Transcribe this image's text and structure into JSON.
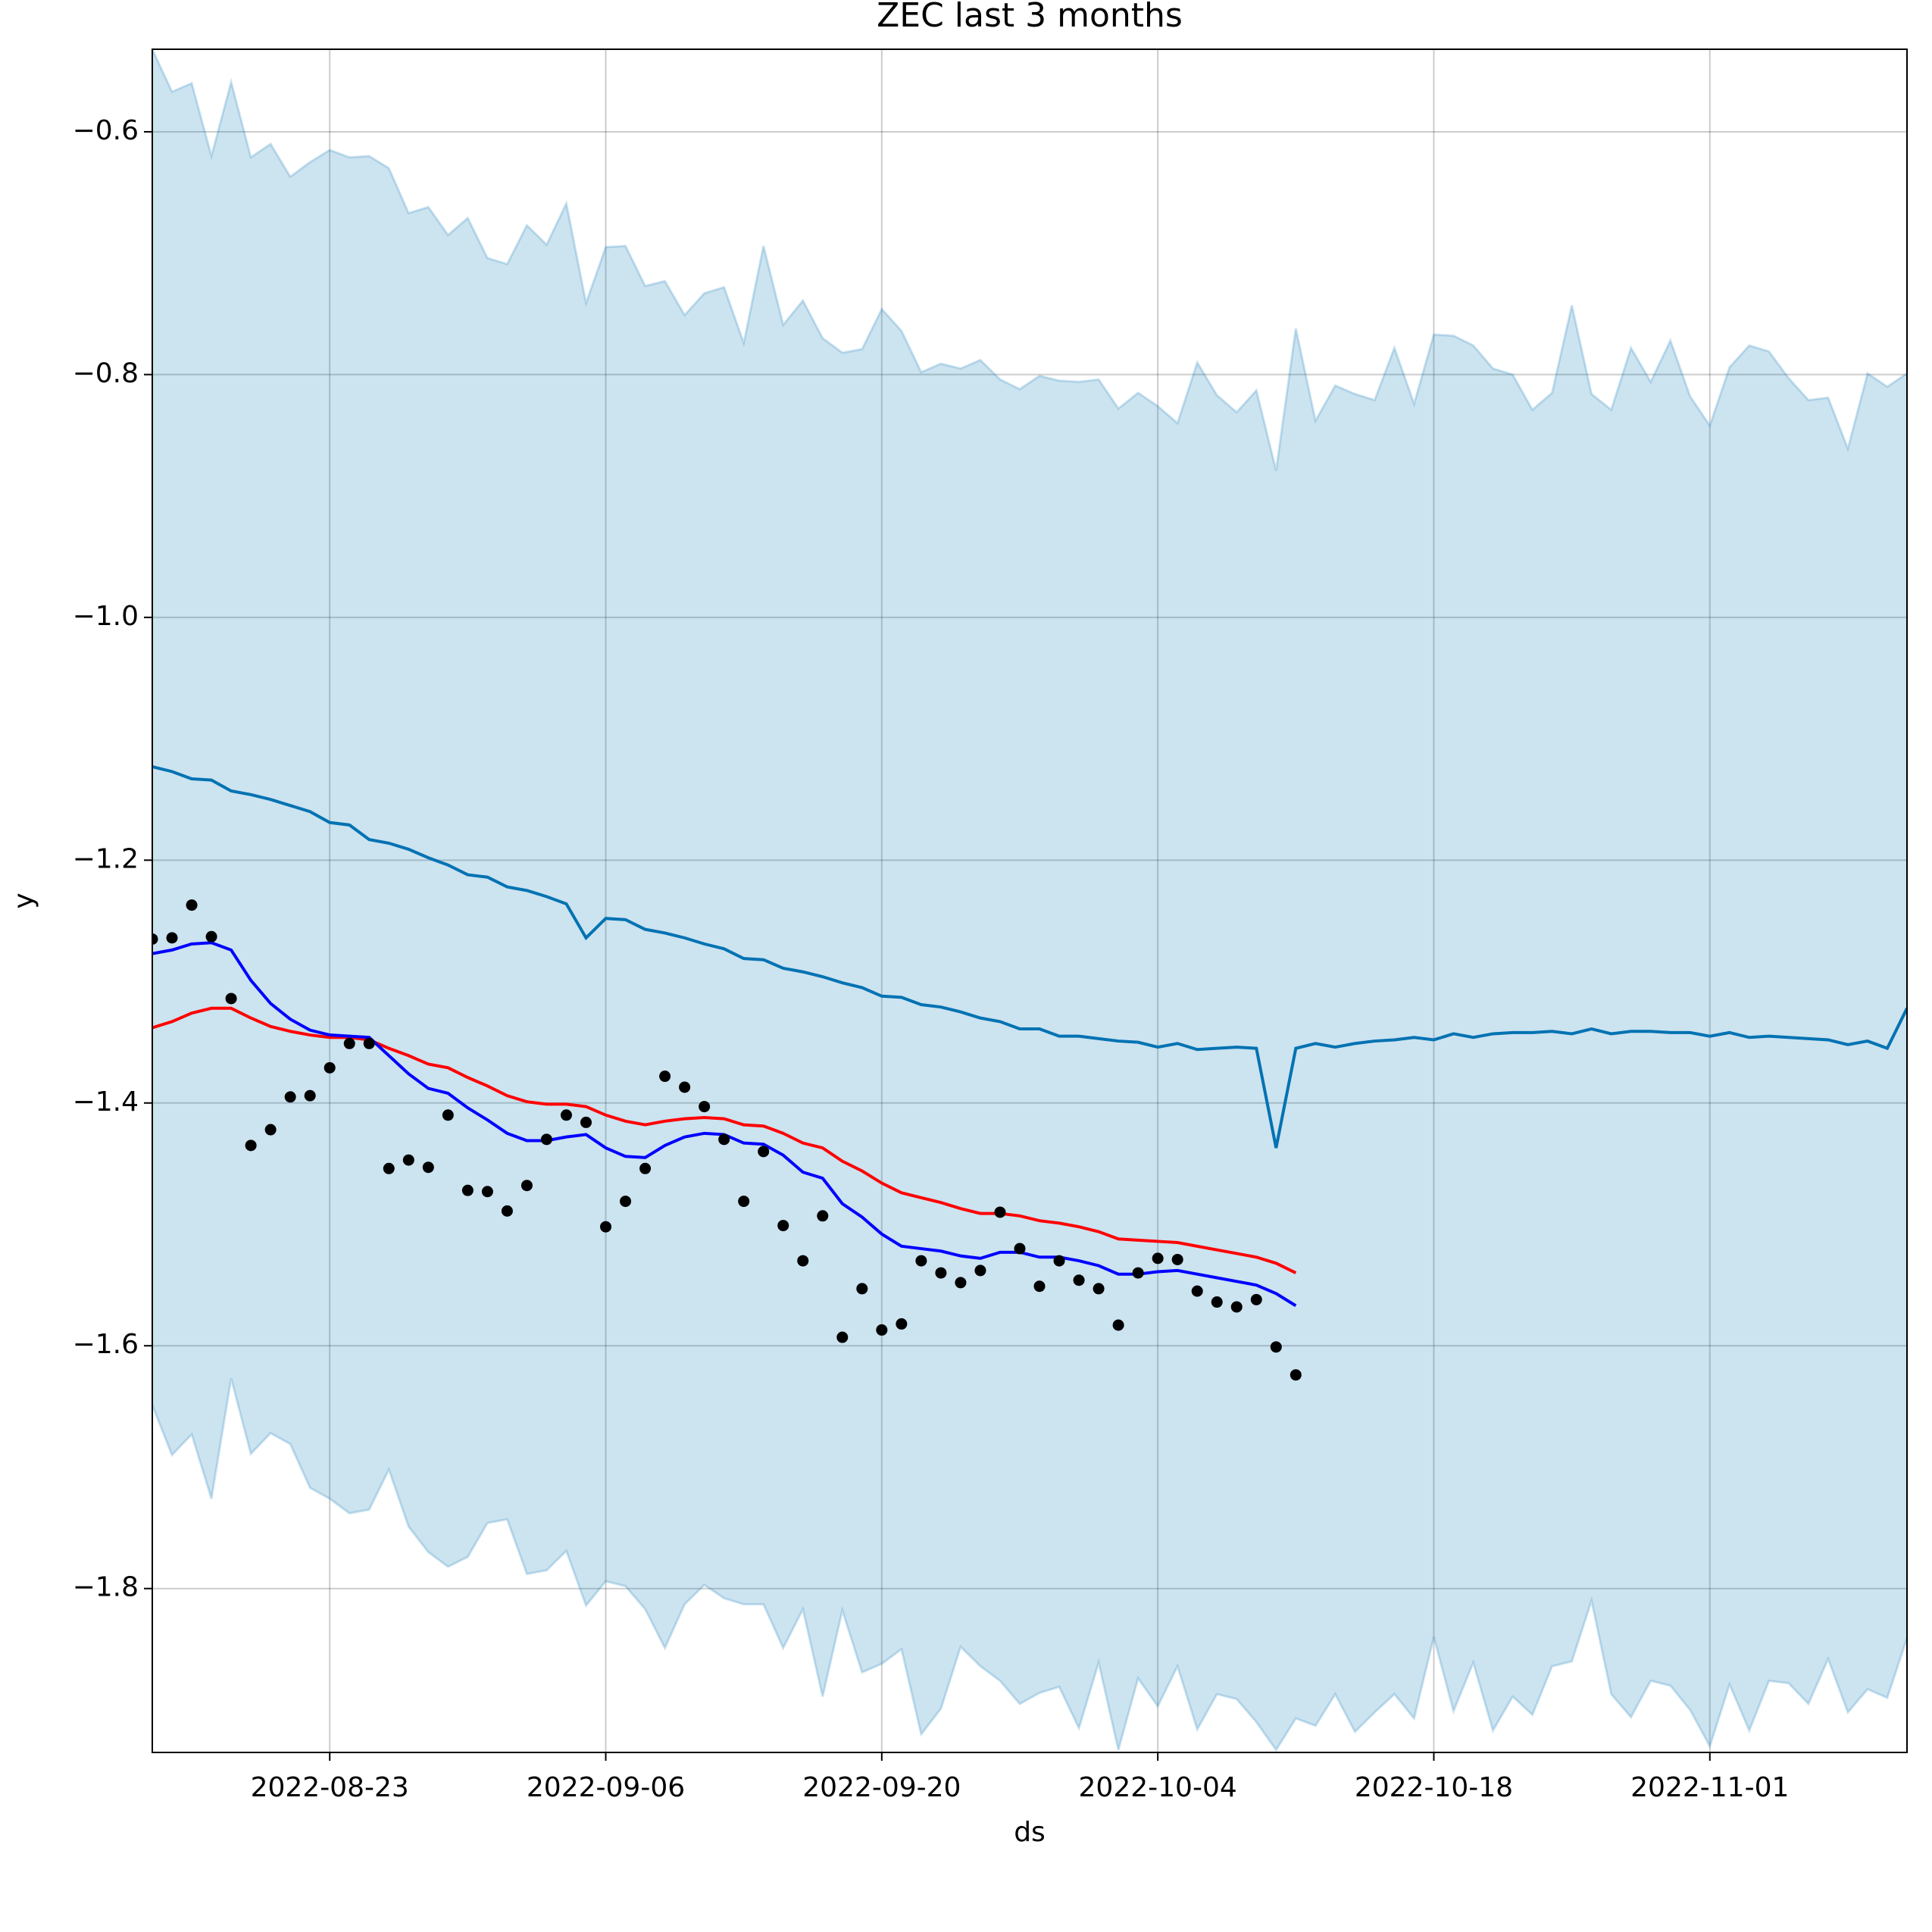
{
  "chart_data": {
    "type": "line",
    "title": "ZEC last 3 months",
    "xlabel": "ds",
    "ylabel": "y",
    "x": [
      "2022-08-14",
      "2022-08-15",
      "2022-08-16",
      "2022-08-17",
      "2022-08-18",
      "2022-08-19",
      "2022-08-20",
      "2022-08-21",
      "2022-08-22",
      "2022-08-23",
      "2022-08-24",
      "2022-08-25",
      "2022-08-26",
      "2022-08-27",
      "2022-08-28",
      "2022-08-29",
      "2022-08-30",
      "2022-08-31",
      "2022-09-01",
      "2022-09-02",
      "2022-09-03",
      "2022-09-04",
      "2022-09-05",
      "2022-09-06",
      "2022-09-07",
      "2022-09-08",
      "2022-09-09",
      "2022-09-10",
      "2022-09-11",
      "2022-09-12",
      "2022-09-13",
      "2022-09-14",
      "2022-09-15",
      "2022-09-16",
      "2022-09-17",
      "2022-09-18",
      "2022-09-19",
      "2022-09-20",
      "2022-09-21",
      "2022-09-22",
      "2022-09-23",
      "2022-09-24",
      "2022-09-25",
      "2022-09-26",
      "2022-09-27",
      "2022-09-28",
      "2022-09-29",
      "2022-09-30",
      "2022-10-01",
      "2022-10-02",
      "2022-10-03",
      "2022-10-04",
      "2022-10-05",
      "2022-10-06",
      "2022-10-07",
      "2022-10-08",
      "2022-10-09",
      "2022-10-10",
      "2022-10-11",
      "2022-10-12",
      "2022-10-13",
      "2022-10-14",
      "2022-10-15",
      "2022-10-16",
      "2022-10-17",
      "2022-10-18",
      "2022-10-19",
      "2022-10-20",
      "2022-10-21",
      "2022-10-22",
      "2022-10-23",
      "2022-10-24",
      "2022-10-25",
      "2022-10-26",
      "2022-10-27",
      "2022-10-28",
      "2022-10-29",
      "2022-10-30",
      "2022-10-31",
      "2022-11-01",
      "2022-11-02",
      "2022-11-03",
      "2022-11-04",
      "2022-11-05",
      "2022-11-06",
      "2022-11-07",
      "2022-11-08",
      "2022-11-09",
      "2022-11-10",
      "2022-11-11"
    ],
    "band": {
      "color": "#0072b2",
      "upper": [
        -0.532,
        -0.567,
        -0.56,
        -0.62,
        -0.559,
        -0.621,
        -0.61,
        -0.637,
        -0.625,
        -0.615,
        -0.621,
        -0.62,
        -0.63,
        -0.667,
        -0.662,
        -0.685,
        -0.671,
        -0.704,
        -0.709,
        -0.677,
        -0.693,
        -0.659,
        -0.741,
        -0.695,
        -0.694,
        -0.727,
        -0.723,
        -0.751,
        -0.733,
        -0.728,
        -0.774,
        -0.694,
        -0.759,
        -0.739,
        -0.77,
        -0.782,
        -0.779,
        -0.746,
        -0.764,
        -0.798,
        -0.791,
        -0.795,
        -0.788,
        -0.804,
        -0.812,
        -0.801,
        -0.805,
        -0.806,
        -0.804,
        -0.828,
        -0.815,
        -0.826,
        -0.84,
        -0.79,
        -0.817,
        -0.831,
        -0.813,
        -0.879,
        -0.762,
        -0.838,
        -0.809,
        -0.816,
        -0.821,
        -0.778,
        -0.824,
        -0.767,
        -0.768,
        -0.776,
        -0.795,
        -0.8,
        -0.829,
        -0.815,
        -0.743,
        -0.816,
        -0.829,
        -0.778,
        -0.806,
        -0.772,
        -0.818,
        -0.842,
        -0.794,
        -0.776,
        -0.781,
        -0.803,
        -0.821,
        -0.819,
        -0.861,
        -0.799,
        -0.81,
        -0.799
      ],
      "lower": [
        -1.649,
        -1.69,
        -1.673,
        -1.726,
        -1.627,
        -1.689,
        -1.672,
        -1.681,
        -1.717,
        -1.726,
        -1.738,
        -1.735,
        -1.702,
        -1.749,
        -1.77,
        -1.782,
        -1.774,
        -1.746,
        -1.743,
        -1.788,
        -1.785,
        -1.769,
        -1.814,
        -1.794,
        -1.798,
        -1.817,
        -1.849,
        -1.813,
        -1.797,
        -1.808,
        -1.813,
        -1.813,
        -1.849,
        -1.817,
        -1.889,
        -1.818,
        -1.869,
        -1.862,
        -1.85,
        -1.92,
        -1.899,
        -1.848,
        -1.864,
        -1.876,
        -1.895,
        -1.886,
        -1.881,
        -1.915,
        -1.861,
        -1.933,
        -1.874,
        -1.897,
        -1.864,
        -1.916,
        -1.887,
        -1.891,
        -1.91,
        -1.933,
        -1.907,
        -1.913,
        -1.887,
        -1.918,
        -1.902,
        -1.887,
        -1.907,
        -1.84,
        -1.901,
        -1.861,
        -1.917,
        -1.889,
        -1.904,
        -1.864,
        -1.86,
        -1.81,
        -1.887,
        -1.906,
        -1.876,
        -1.88,
        -1.9,
        -1.93,
        -1.879,
        -1.917,
        -1.876,
        -1.878,
        -1.895,
        -1.858,
        -1.902,
        -1.883,
        -1.89,
        -1.841
      ]
    },
    "series": [
      {
        "color": "#0072b2",
        "values": [
          -1.123,
          -1.127,
          -1.133,
          -1.134,
          -1.143,
          -1.146,
          -1.15,
          -1.155,
          -1.16,
          -1.169,
          -1.171,
          -1.183,
          -1.186,
          -1.191,
          -1.198,
          -1.204,
          -1.212,
          -1.214,
          -1.222,
          -1.225,
          -1.23,
          -1.236,
          -1.264,
          -1.248,
          -1.249,
          -1.257,
          -1.26,
          -1.264,
          -1.269,
          -1.273,
          -1.281,
          -1.282,
          -1.289,
          -1.292,
          -1.296,
          -1.301,
          -1.305,
          -1.312,
          -1.313,
          -1.319,
          -1.321,
          -1.325,
          -1.33,
          -1.333,
          -1.339,
          -1.339,
          -1.345,
          -1.345,
          -1.347,
          -1.349,
          -1.35,
          -1.354,
          -1.351,
          -1.356,
          -1.355,
          -1.354,
          -1.355,
          -1.437,
          -1.355,
          -1.351,
          -1.354,
          -1.351,
          -1.349,
          -1.348,
          -1.346,
          -1.348,
          -1.343,
          -1.346,
          -1.343,
          -1.342,
          -1.342,
          -1.341,
          -1.343,
          -1.339,
          -1.343,
          -1.341,
          -1.341,
          -1.342,
          -1.342,
          -1.345,
          -1.342,
          -1.346,
          -1.345,
          -1.346,
          -1.347,
          -1.348,
          -1.352,
          -1.349,
          -1.355,
          -1.322
        ]
      },
      {
        "color": "#ff0000",
        "values": [
          -1.338,
          -1.333,
          -1.326,
          -1.322,
          -1.322,
          -1.33,
          -1.337,
          -1.341,
          -1.344,
          -1.346,
          -1.346,
          -1.348,
          -1.355,
          -1.361,
          -1.368,
          -1.371,
          -1.379,
          -1.386,
          -1.394,
          -1.399,
          -1.401,
          -1.401,
          -1.403,
          -1.41,
          -1.415,
          -1.418,
          -1.415,
          -1.413,
          -1.412,
          -1.413,
          -1.418,
          -1.419,
          -1.425,
          -1.433,
          -1.437,
          -1.448,
          -1.456,
          -1.466,
          -1.474,
          -1.478,
          -1.482,
          -1.487,
          -1.491,
          -1.491,
          -1.493,
          -1.497,
          -1.499,
          -1.502,
          -1.506,
          -1.512,
          -1.513,
          -1.514,
          -1.515,
          -1.518,
          -1.521,
          -1.524,
          -1.527,
          -1.532,
          -1.54,
          null,
          null,
          null,
          null,
          null,
          null,
          null,
          null,
          null,
          null,
          null,
          null,
          null,
          null,
          null,
          null,
          null,
          null,
          null,
          null,
          null,
          null,
          null,
          null,
          null,
          null,
          null,
          null,
          null,
          null,
          null
        ]
      },
      {
        "color": "#0000ff",
        "values": [
          -1.277,
          -1.274,
          -1.269,
          -1.268,
          -1.274,
          -1.299,
          -1.318,
          -1.331,
          -1.34,
          -1.344,
          -1.345,
          -1.346,
          -1.361,
          -1.376,
          -1.388,
          -1.392,
          -1.404,
          -1.414,
          -1.425,
          -1.431,
          -1.431,
          -1.428,
          -1.426,
          -1.437,
          -1.444,
          -1.445,
          -1.435,
          -1.428,
          -1.425,
          -1.426,
          -1.433,
          -1.434,
          -1.443,
          -1.457,
          -1.462,
          -1.483,
          -1.494,
          -1.508,
          -1.518,
          -1.52,
          -1.522,
          -1.526,
          -1.528,
          -1.523,
          -1.523,
          -1.527,
          -1.527,
          -1.53,
          -1.534,
          -1.541,
          -1.541,
          -1.539,
          -1.538,
          -1.541,
          -1.544,
          -1.547,
          -1.55,
          -1.557,
          -1.567,
          null,
          null,
          null,
          null,
          null,
          null,
          null,
          null,
          null,
          null,
          null,
          null,
          null,
          null,
          null,
          null,
          null,
          null,
          null,
          null,
          null,
          null,
          null,
          null,
          null,
          null,
          null,
          null,
          null,
          null,
          null
        ]
      }
    ],
    "points": {
      "color": "#000000",
      "values": [
        -1.265,
        -1.264,
        -1.237,
        -1.263,
        -1.314,
        -1.435,
        -1.422,
        -1.395,
        -1.394,
        -1.371,
        -1.351,
        -1.351,
        -1.454,
        -1.447,
        -1.453,
        -1.41,
        -1.472,
        -1.473,
        -1.489,
        -1.468,
        -1.43,
        -1.41,
        -1.416,
        -1.502,
        -1.481,
        -1.454,
        -1.378,
        -1.387,
        -1.403,
        -1.43,
        -1.481,
        -1.44,
        -1.501,
        -1.53,
        -1.493,
        -1.593,
        -1.553,
        -1.587,
        -1.582,
        -1.53,
        -1.54,
        -1.548,
        -1.538,
        -1.49,
        -1.52,
        -1.551,
        -1.53,
        -1.546,
        -1.553,
        -1.583,
        -1.54,
        -1.528,
        -1.529,
        -1.555,
        -1.564,
        -1.568,
        -1.562,
        -1.601,
        -1.624,
        null,
        null,
        null,
        null,
        null,
        null,
        null,
        null,
        null,
        null,
        null,
        null,
        null,
        null,
        null,
        null,
        null,
        null,
        null,
        null,
        null,
        null,
        null,
        null,
        null,
        null,
        null,
        null,
        null,
        null,
        null
      ]
    },
    "xlim": [
      "2022-08-14",
      "2022-11-11"
    ],
    "xticks": [
      "2022-08-23",
      "2022-09-06",
      "2022-09-20",
      "2022-10-04",
      "2022-10-18",
      "2022-11-01"
    ],
    "ylim": [
      -1.935,
      -0.532
    ],
    "yticks": [
      {
        "value": -1.8,
        "label": "−1.8"
      },
      {
        "value": -1.6,
        "label": "−1.6"
      },
      {
        "value": -1.4,
        "label": "−1.4"
      },
      {
        "value": -1.2,
        "label": "−1.2"
      },
      {
        "value": -1.0,
        "label": "−1.0"
      },
      {
        "value": -0.8,
        "label": "−0.8"
      },
      {
        "value": -0.6,
        "label": "−0.6"
      }
    ],
    "grid": true
  }
}
